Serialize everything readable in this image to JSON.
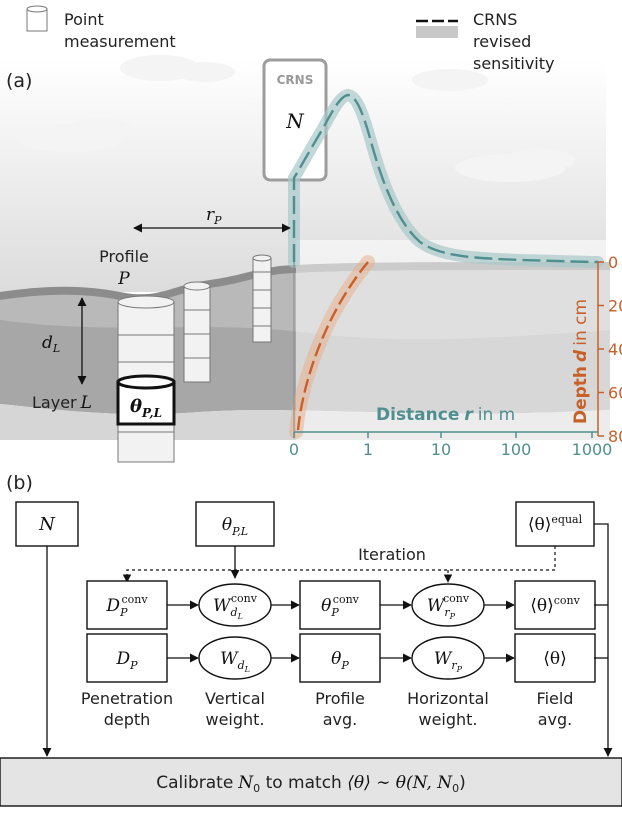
{
  "legend": {
    "point_measurement": [
      "Point",
      "measurement"
    ],
    "crns_revised": [
      "CRNS",
      "revised",
      "sensitivity"
    ]
  },
  "panel_a": {
    "label": "(a)",
    "crns_station_label": "CRNS",
    "crns_station_symbol": "N",
    "rP_label": "r",
    "rP_sub": "P",
    "profile_label": "Profile",
    "profile_symbol": "P",
    "dL_label": "d",
    "dL_sub": "L",
    "layer_label": "Layer",
    "layer_symbol": "L",
    "theta_label": "θ",
    "theta_sub": "P,L",
    "depth_axis": {
      "title_prefix": "Depth",
      "title_var": "d",
      "title_suffix": "in cm",
      "ticks": [
        "0",
        "20",
        "40",
        "60",
        "80"
      ]
    },
    "distance_axis": {
      "title_prefix": "Distance",
      "title_var": "r",
      "title_suffix": "in m",
      "ticks": [
        "0",
        "1",
        "10",
        "100",
        "1000"
      ]
    },
    "colors": {
      "depth": "#c8602a",
      "distance": "#4f8f8f",
      "ground": "#9a9a9a"
    }
  },
  "panel_b": {
    "label": "(b)",
    "N": "N",
    "theta_PL": "θ",
    "theta_PL_sub": "P,L",
    "theta_equal": "⟨θ⟩",
    "theta_equal_sup": "equal",
    "iteration": "Iteration",
    "row_conv": [
      {
        "main": "D",
        "sub": "P",
        "sup": "conv"
      },
      {
        "main": "W",
        "sub": "dL",
        "sup": "conv"
      },
      {
        "main": "θ",
        "sub": "P",
        "sup": "conv"
      },
      {
        "main": "W",
        "sub": "rP",
        "sup": "conv"
      },
      {
        "main": "⟨θ⟩",
        "sub": "",
        "sup": "conv"
      }
    ],
    "row_plain": [
      {
        "main": "D",
        "sub": "P"
      },
      {
        "main": "W",
        "sub": "dL"
      },
      {
        "main": "θ",
        "sub": "P"
      },
      {
        "main": "W",
        "sub": "rP"
      },
      {
        "main": "⟨θ⟩",
        "sub": ""
      }
    ],
    "captions": [
      [
        "Penetration",
        "depth"
      ],
      [
        "Vertical",
        "weight."
      ],
      [
        "Profile",
        "avg."
      ],
      [
        "Horizontal",
        "weight."
      ],
      [
        "Field",
        "avg."
      ]
    ],
    "calibrate": {
      "prefix": "Calibrate",
      "N0": "N",
      "N0_sub": "0",
      "mid": " to match ",
      "formula": "⟨θ⟩ ∼ θ(N, N",
      "formula_sub": "0",
      "formula_end": ")"
    }
  }
}
